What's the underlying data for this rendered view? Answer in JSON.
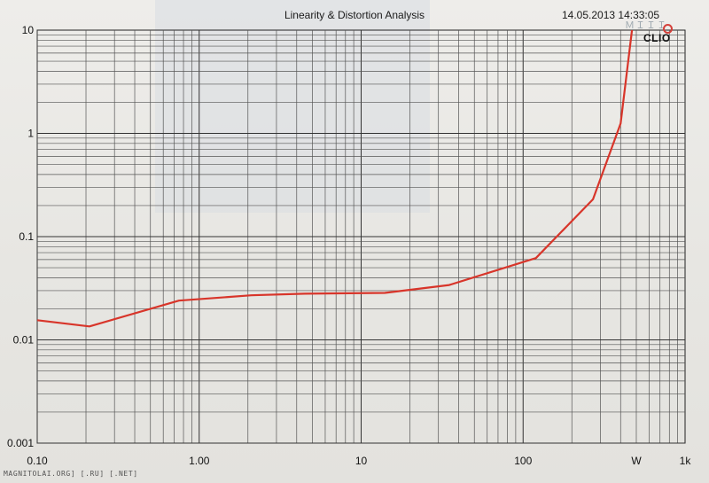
{
  "header": {
    "title": "Linearity & Distortion Analysis",
    "timestamp": "14.05.2013 14:33:05",
    "brand": "CLIO"
  },
  "footer": {
    "credit": "MAGNITOLAI.ORG] [.RU] [.NET]"
  },
  "chart_data": {
    "type": "line",
    "title": "Linearity & Distortion Analysis",
    "xscale": "log",
    "yscale": "log",
    "xlim": [
      0.1,
      1000
    ],
    "ylim": [
      0.001,
      10
    ],
    "xticks": [
      {
        "v": 0.1,
        "label": "0.10"
      },
      {
        "v": 1,
        "label": "1.00"
      },
      {
        "v": 10,
        "label": "10"
      },
      {
        "v": 100,
        "label": "100"
      },
      {
        "v": 1000,
        "label": "1k"
      }
    ],
    "xunit": {
      "label": "W",
      "v": 500
    },
    "yticks": [
      {
        "v": 10,
        "label": "10"
      },
      {
        "v": 1,
        "label": "1"
      },
      {
        "v": 0.1,
        "label": "0.1"
      },
      {
        "v": 0.01,
        "label": "0.01"
      },
      {
        "v": 0.001,
        "label": "0.001"
      }
    ],
    "grid": true,
    "line_color": "#d8352a",
    "series": [
      {
        "x": [
          0.1,
          0.21,
          0.75,
          2.1,
          4.5,
          14,
          35,
          120,
          270,
          400,
          470
        ],
        "y": [
          0.0155,
          0.0135,
          0.024,
          0.027,
          0.028,
          0.0285,
          0.034,
          0.062,
          0.23,
          1.25,
          10
        ]
      }
    ]
  }
}
